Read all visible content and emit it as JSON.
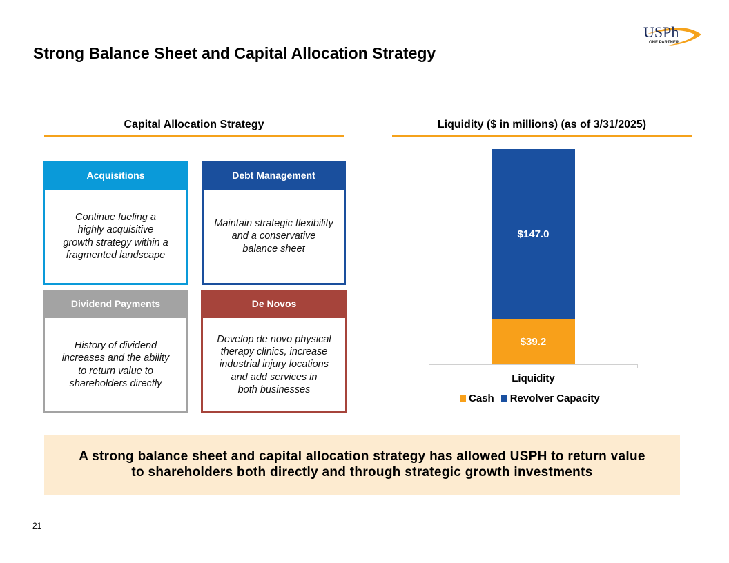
{
  "title": "Strong Balance Sheet and Capital Allocation Strategy",
  "logo": {
    "text": "USPh",
    "tagline": "ONE PARTNER"
  },
  "left_section": {
    "heading": "Capital Allocation Strategy",
    "cards": [
      {
        "header": "Acquisitions",
        "body": "Continue fueling a\nhighly acquisitive\ngrowth strategy within a\nfragmented landscape",
        "color": "#0a9ad9"
      },
      {
        "header": "Debt Management",
        "body": "Maintain strategic flexibility\nand a conservative\nbalance sheet",
        "color": "#1a4f9d"
      },
      {
        "header": "Dividend Payments",
        "body": "History of dividend\nincreases and the ability\nto return value to\nshareholders directly",
        "color": "#a3a3a3"
      },
      {
        "header": "De Novos",
        "body": "Develop de novo physical\ntherapy clinics, increase\nindustrial injury locations\nand add services in\nboth businesses",
        "color": "#a6443b"
      }
    ]
  },
  "chart_data": {
    "type": "bar",
    "stacked": true,
    "title": "Liquidity ($ in millions) (as of 3/31/2025)",
    "categories": [
      "Liquidity"
    ],
    "series": [
      {
        "name": "Cash",
        "values": [
          39.2
        ],
        "label": "$39.2",
        "color": "#f8a01a"
      },
      {
        "name": "Revolver Capacity",
        "values": [
          147.0
        ],
        "label": "$147.0",
        "color": "#1a50a0"
      }
    ],
    "legend_position": "bottom",
    "grid": false
  },
  "banner": "A strong balance sheet and capital allocation strategy has allowed USPH to return value to shareholders both directly and through strategic growth investments",
  "page_number": "21"
}
